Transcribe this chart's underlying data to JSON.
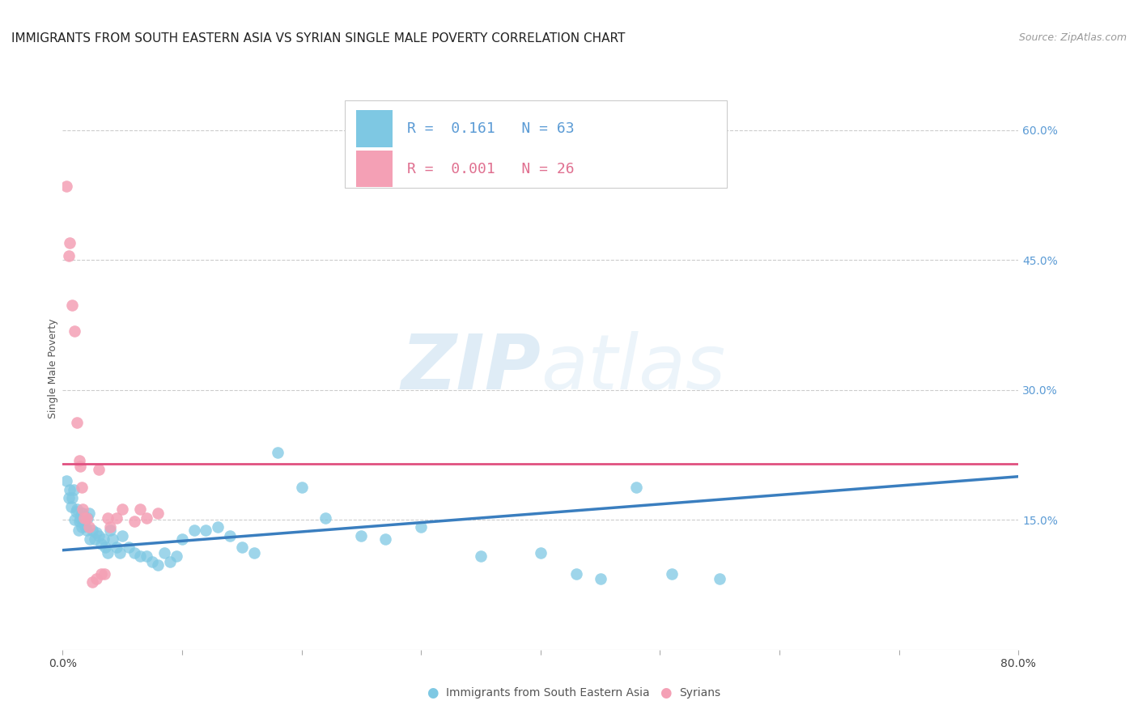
{
  "title": "IMMIGRANTS FROM SOUTH EASTERN ASIA VS SYRIAN SINGLE MALE POVERTY CORRELATION CHART",
  "source": "Source: ZipAtlas.com",
  "xlabel": "",
  "ylabel": "Single Male Poverty",
  "xlim": [
    0.0,
    0.8
  ],
  "ylim": [
    0.0,
    0.65
  ],
  "xticks": [
    0.0,
    0.1,
    0.2,
    0.3,
    0.4,
    0.5,
    0.6,
    0.7,
    0.8
  ],
  "xticklabels": [
    "0.0%",
    "",
    "",
    "",
    "",
    "",
    "",
    "",
    "80.0%"
  ],
  "yticks_right": [
    0.15,
    0.3,
    0.45,
    0.6
  ],
  "ytick_labels_right": [
    "15.0%",
    "30.0%",
    "45.0%",
    "60.0%"
  ],
  "r_blue": 0.161,
  "n_blue": 63,
  "r_pink": 0.001,
  "n_pink": 26,
  "blue_color": "#7ec8e3",
  "pink_color": "#f4a0b5",
  "blue_line_color": "#3a7ebf",
  "pink_line_color": "#e05080",
  "legend_label_blue": "Immigrants from South Eastern Asia",
  "legend_label_pink": "Syrians",
  "watermark_zip": "ZIP",
  "watermark_atlas": "atlas",
  "blue_x": [
    0.003,
    0.005,
    0.006,
    0.007,
    0.008,
    0.009,
    0.01,
    0.011,
    0.012,
    0.013,
    0.014,
    0.015,
    0.016,
    0.016,
    0.017,
    0.018,
    0.019,
    0.02,
    0.021,
    0.022,
    0.023,
    0.025,
    0.027,
    0.028,
    0.03,
    0.032,
    0.034,
    0.036,
    0.038,
    0.04,
    0.042,
    0.045,
    0.048,
    0.05,
    0.055,
    0.06,
    0.065,
    0.07,
    0.075,
    0.08,
    0.085,
    0.09,
    0.095,
    0.1,
    0.11,
    0.12,
    0.13,
    0.14,
    0.15,
    0.16,
    0.18,
    0.2,
    0.22,
    0.25,
    0.27,
    0.3,
    0.35,
    0.4,
    0.43,
    0.45,
    0.48,
    0.51,
    0.55
  ],
  "blue_y": [
    0.195,
    0.175,
    0.185,
    0.165,
    0.175,
    0.185,
    0.15,
    0.16,
    0.162,
    0.138,
    0.148,
    0.152,
    0.142,
    0.158,
    0.158,
    0.148,
    0.143,
    0.138,
    0.152,
    0.158,
    0.128,
    0.138,
    0.128,
    0.135,
    0.132,
    0.122,
    0.128,
    0.118,
    0.112,
    0.138,
    0.128,
    0.118,
    0.112,
    0.132,
    0.118,
    0.112,
    0.108,
    0.108,
    0.102,
    0.098,
    0.112,
    0.102,
    0.108,
    0.128,
    0.138,
    0.138,
    0.142,
    0.132,
    0.118,
    0.112,
    0.228,
    0.188,
    0.152,
    0.132,
    0.128,
    0.142,
    0.108,
    0.112,
    0.088,
    0.082,
    0.188,
    0.088,
    0.082
  ],
  "pink_x": [
    0.003,
    0.005,
    0.006,
    0.008,
    0.01,
    0.012,
    0.014,
    0.015,
    0.016,
    0.017,
    0.018,
    0.02,
    0.022,
    0.025,
    0.028,
    0.03,
    0.032,
    0.035,
    0.038,
    0.04,
    0.045,
    0.05,
    0.06,
    0.065,
    0.07,
    0.08
  ],
  "pink_y": [
    0.535,
    0.455,
    0.47,
    0.398,
    0.368,
    0.262,
    0.218,
    0.212,
    0.188,
    0.162,
    0.152,
    0.152,
    0.142,
    0.078,
    0.082,
    0.208,
    0.088,
    0.088,
    0.152,
    0.142,
    0.152,
    0.162,
    0.148,
    0.162,
    0.152,
    0.158
  ],
  "blue_trend_x": [
    0.0,
    0.8
  ],
  "blue_trend_y": [
    0.115,
    0.2
  ],
  "pink_trend_x": [
    0.0,
    0.8
  ],
  "pink_trend_y": [
    0.215,
    0.215
  ],
  "grid_color": "#cccccc",
  "background_color": "#ffffff",
  "title_fontsize": 11,
  "source_fontsize": 9,
  "axis_label_fontsize": 9,
  "tick_fontsize": 10,
  "right_tick_color": "#5b9bd5"
}
